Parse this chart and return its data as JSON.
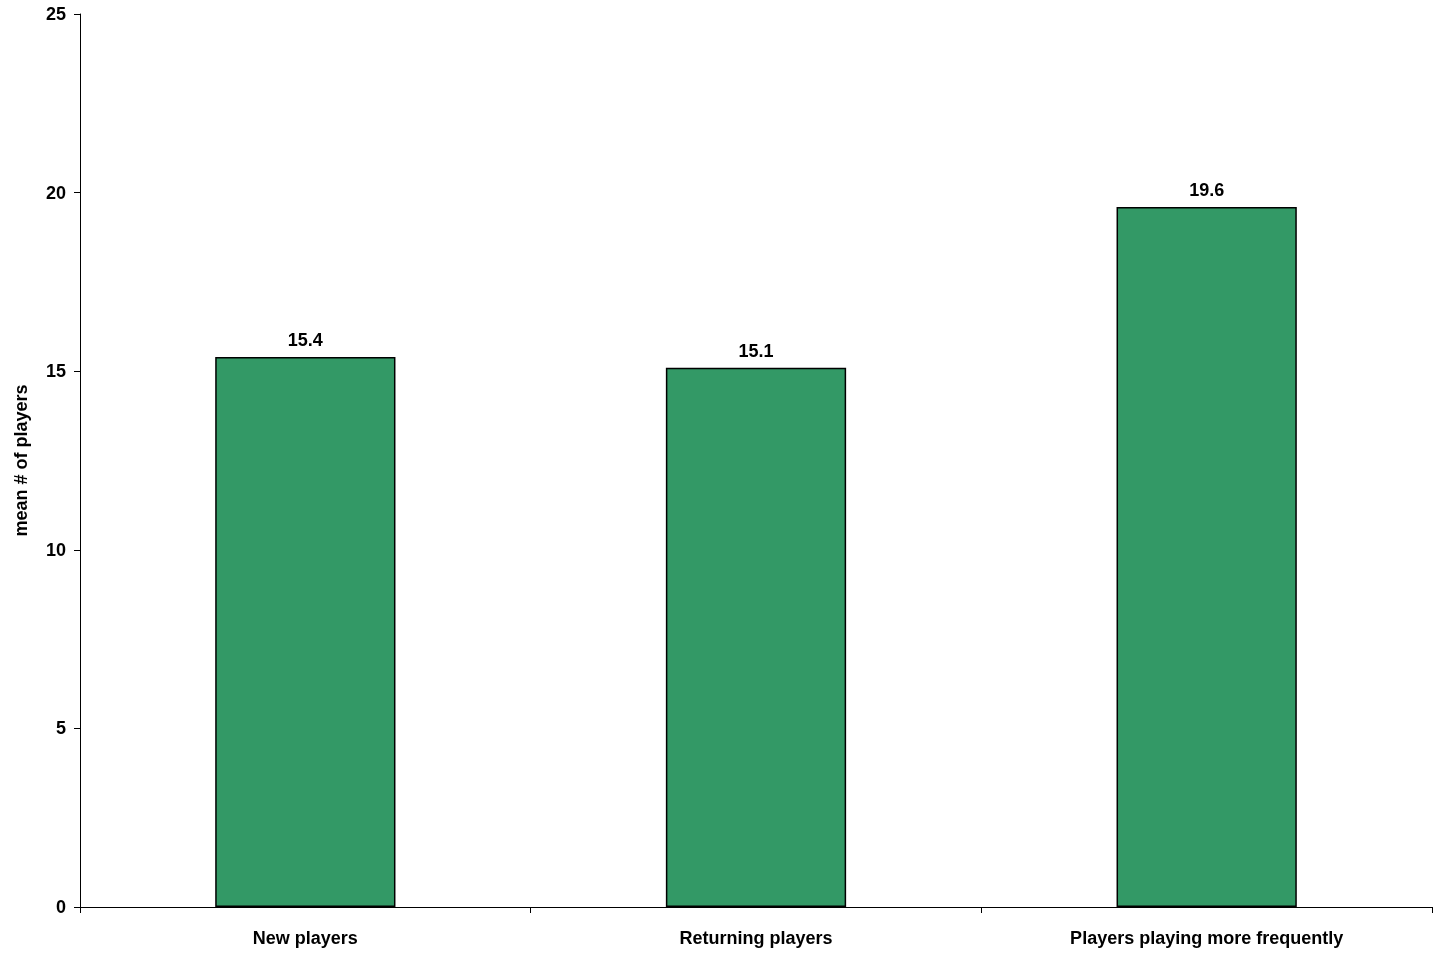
{
  "chart_data": {
    "type": "bar",
    "ylabel": "mean # of players",
    "categories": [
      "New players",
      "Returning players",
      "Players playing more frequently"
    ],
    "values": [
      15.4,
      15.1,
      19.6
    ],
    "color": "#339966",
    "ylim": [
      0,
      25
    ],
    "yticks": [
      0,
      5,
      10,
      15,
      20,
      25
    ],
    "grid": false,
    "data_labels": true
  }
}
